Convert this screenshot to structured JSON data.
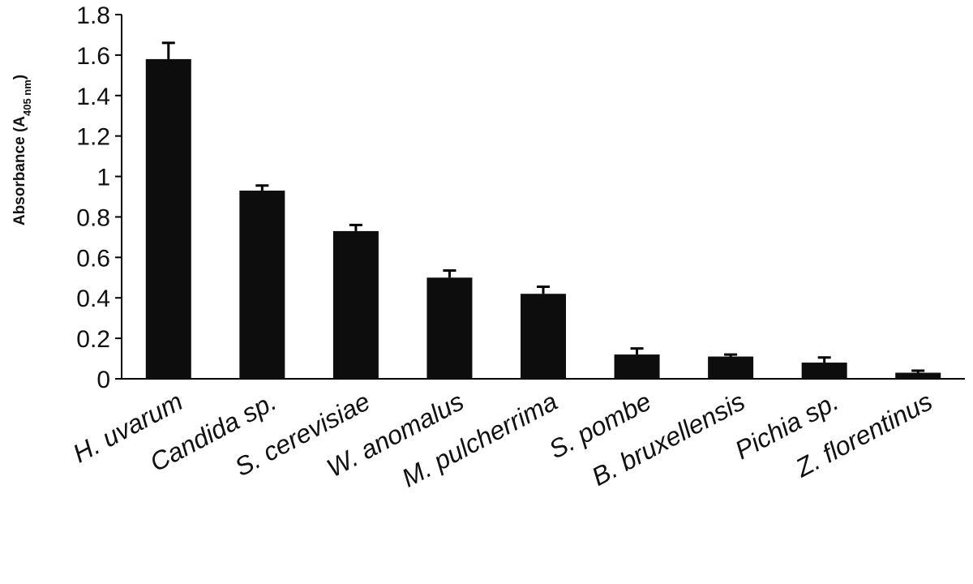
{
  "chart_data": {
    "type": "bar",
    "categories": [
      "H. uvarum",
      "Candida sp.",
      "S. cerevisiae",
      "W. anomalus",
      "M. pulcherrima",
      "S. pombe",
      "B. bruxellensis",
      "Pichia sp.",
      "Z. florentinus"
    ],
    "values": [
      1.58,
      0.93,
      0.73,
      0.5,
      0.42,
      0.12,
      0.11,
      0.08,
      0.03
    ],
    "errors": [
      0.08,
      0.025,
      0.03,
      0.035,
      0.035,
      0.03,
      0.01,
      0.025,
      0.01
    ],
    "ylabel": {
      "prefix": "Absorbance (A",
      "subscript": "405 nm",
      "suffix": ")"
    },
    "ylim": [
      0,
      1.8
    ],
    "yticks": [
      "0",
      "0.2",
      "0.4",
      "0.6",
      "0.8",
      "1",
      "1.2",
      "1.4",
      "1.6",
      "1.8"
    ],
    "grid": false,
    "bar_color": "#0d0d0d"
  }
}
